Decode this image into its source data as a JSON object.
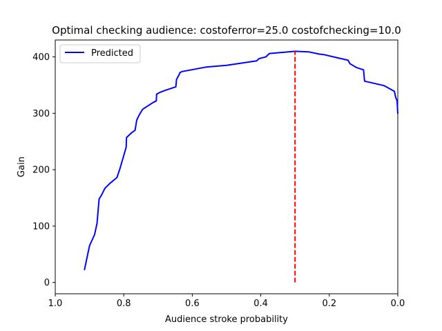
{
  "chart_data": {
    "type": "line",
    "title": "Optimal checking audience: costoferror=25.0 costofchecking=10.0",
    "xlabel": "Audience stroke probability",
    "ylabel": "Gain",
    "xlim": [
      1.0,
      0.0
    ],
    "ylim": [
      -20,
      430
    ],
    "x_ticks": [
      "1.0",
      "0.8",
      "0.6",
      "0.4",
      "0.2",
      "0.0"
    ],
    "y_ticks": [
      "0",
      "100",
      "200",
      "300",
      "400"
    ],
    "grid": false,
    "legend_placement": "upper-left",
    "series": [
      {
        "name": "Predicted",
        "color": "#0000ff",
        "style": "solid",
        "points": [
          [
            0.915,
            22
          ],
          [
            0.9,
            65
          ],
          [
            0.885,
            85
          ],
          [
            0.878,
            105
          ],
          [
            0.872,
            148
          ],
          [
            0.865,
            155
          ],
          [
            0.855,
            167
          ],
          [
            0.84,
            176
          ],
          [
            0.82,
            186
          ],
          [
            0.812,
            200
          ],
          [
            0.8,
            225
          ],
          [
            0.793,
            240
          ],
          [
            0.792,
            257
          ],
          [
            0.778,
            265
          ],
          [
            0.767,
            270
          ],
          [
            0.762,
            288
          ],
          [
            0.755,
            297
          ],
          [
            0.745,
            307
          ],
          [
            0.735,
            311
          ],
          [
            0.715,
            319
          ],
          [
            0.705,
            322
          ],
          [
            0.704,
            334
          ],
          [
            0.695,
            337
          ],
          [
            0.682,
            340
          ],
          [
            0.648,
            347
          ],
          [
            0.646,
            360
          ],
          [
            0.638,
            369
          ],
          [
            0.636,
            372
          ],
          [
            0.63,
            374
          ],
          [
            0.56,
            382
          ],
          [
            0.5,
            385
          ],
          [
            0.412,
            393
          ],
          [
            0.405,
            397
          ],
          [
            0.385,
            400
          ],
          [
            0.375,
            406
          ],
          [
            0.32,
            409
          ],
          [
            0.3,
            410
          ],
          [
            0.26,
            409
          ],
          [
            0.23,
            405
          ],
          [
            0.215,
            404
          ],
          [
            0.18,
            399
          ],
          [
            0.145,
            394
          ],
          [
            0.14,
            388
          ],
          [
            0.12,
            381
          ],
          [
            0.1,
            377
          ],
          [
            0.097,
            357
          ],
          [
            0.04,
            349
          ],
          [
            0.01,
            339
          ],
          [
            0.006,
            328
          ],
          [
            0.002,
            322
          ],
          [
            0.0,
            299
          ]
        ]
      },
      {
        "name": "",
        "color": "#ff0000",
        "style": "dashed",
        "points": [
          [
            0.3,
            0
          ],
          [
            0.3,
            410
          ]
        ]
      }
    ]
  }
}
